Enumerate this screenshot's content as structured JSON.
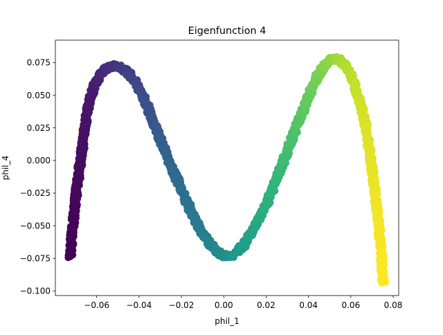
{
  "chart_data": {
    "type": "scatter",
    "title": "Eigenfunction 4",
    "xlabel": "phil_1",
    "ylabel": "phil_4",
    "xlim": [
      -0.0795,
      0.0826
    ],
    "ylim": [
      -0.1035,
      0.0922
    ],
    "xticks": [
      -0.06,
      -0.04,
      -0.02,
      0.0,
      0.02,
      0.04,
      0.06,
      0.08
    ],
    "xtick_labels": [
      "−0.06",
      "−0.04",
      "−0.02",
      "0.00",
      "0.02",
      "0.04",
      "0.06",
      "0.08"
    ],
    "yticks": [
      -0.1,
      -0.075,
      -0.05,
      -0.025,
      0.0,
      0.025,
      0.05,
      0.075
    ],
    "ytick_labels": [
      "−0.100",
      "−0.075",
      "−0.050",
      "−0.025",
      "0.000",
      "0.025",
      "0.050",
      "0.075"
    ],
    "grid": false,
    "colormap": "viridis",
    "color_variable": "position along curve (left to right)",
    "curve_points": [
      [
        -0.0725,
        -0.0735
      ],
      [
        -0.0715,
        -0.055
      ],
      [
        -0.07,
        -0.03
      ],
      [
        -0.068,
        -0.005
      ],
      [
        -0.066,
        0.02
      ],
      [
        -0.064,
        0.042
      ],
      [
        -0.061,
        0.058
      ],
      [
        -0.058,
        0.066
      ],
      [
        -0.055,
        0.071
      ],
      [
        -0.052,
        0.0725
      ],
      [
        -0.049,
        0.072
      ],
      [
        -0.045,
        0.067
      ],
      [
        -0.041,
        0.058
      ],
      [
        -0.037,
        0.045
      ],
      [
        -0.033,
        0.028
      ],
      [
        -0.028,
        0.008
      ],
      [
        -0.022,
        -0.015
      ],
      [
        -0.016,
        -0.037
      ],
      [
        -0.01,
        -0.056
      ],
      [
        -0.004,
        -0.069
      ],
      [
        0.0,
        -0.073
      ],
      [
        0.004,
        -0.073
      ],
      [
        0.009,
        -0.066
      ],
      [
        0.015,
        -0.05
      ],
      [
        0.021,
        -0.03
      ],
      [
        0.027,
        -0.006
      ],
      [
        0.033,
        0.02
      ],
      [
        0.039,
        0.045
      ],
      [
        0.045,
        0.067
      ],
      [
        0.05,
        0.077
      ],
      [
        0.054,
        0.078
      ],
      [
        0.058,
        0.072
      ],
      [
        0.062,
        0.058
      ],
      [
        0.066,
        0.035
      ],
      [
        0.069,
        0.006
      ],
      [
        0.0715,
        -0.025
      ],
      [
        0.0735,
        -0.055
      ],
      [
        0.0748,
        -0.08
      ],
      [
        0.0752,
        -0.093
      ]
    ]
  }
}
